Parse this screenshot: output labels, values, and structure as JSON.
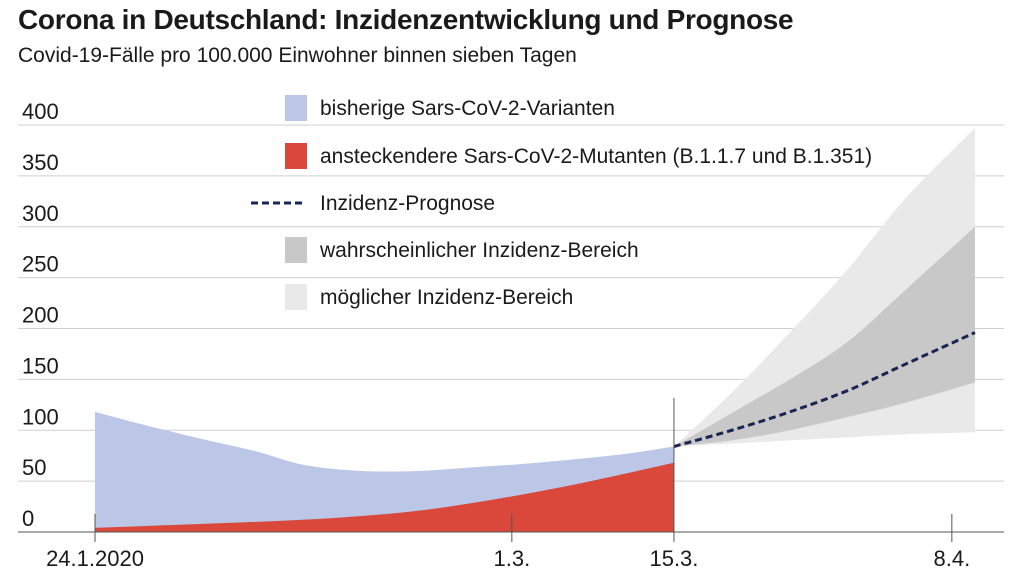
{
  "title": "Corona in Deutschland: Inzidenzentwicklung und Prognose",
  "subtitle": "Covid-19-Fälle pro 100.000 Einwohner binnen sieben Tagen",
  "colors": {
    "variants": "#bcc6e6",
    "mutants": "#d9483b",
    "forecast": "#1b2552",
    "likely": "#c8c8c8",
    "possible": "#e9e9e9",
    "grid": "#cfcfcf",
    "axis": "#555555"
  },
  "chart_data": {
    "type": "area",
    "title": "Corona in Deutschland: Inzidenzentwicklung und Prognose",
    "subtitle": "Covid-19-Fälle pro 100.000 Einwohner binnen sieben Tagen",
    "ylim": [
      0,
      400
    ],
    "yticks": [
      0,
      50,
      100,
      150,
      200,
      250,
      300,
      350,
      400
    ],
    "grid": true,
    "x_ticks": [
      {
        "label": "24.1.2020",
        "x": "2021-01-24"
      },
      {
        "label": "1.3.",
        "x": "2021-03-01"
      },
      {
        "label": "15.3.",
        "x": "2021-03-15"
      },
      {
        "label": "8.4.",
        "x": "2021-04-08"
      }
    ],
    "x_domain": [
      "2021-01-24",
      "2021-04-10"
    ],
    "legend": [
      {
        "label": "bisherige Sars-CoV-2-Varianten",
        "kind": "area",
        "color": "#bcc6e6"
      },
      {
        "label": "ansteckendere Sars-CoV-2-Mutanten (B.1.1.7 und B.1.351)",
        "kind": "area",
        "color": "#d9483b"
      },
      {
        "label": "Inzidenz-Prognose",
        "kind": "dashed-line",
        "color": "#1b2552"
      },
      {
        "label": "wahrscheinlicher Inzidenz-Bereich",
        "kind": "area",
        "color": "#c8c8c8"
      },
      {
        "label": "möglicher Inzidenz-Bereich",
        "kind": "area",
        "color": "#e9e9e9"
      }
    ],
    "series": [
      {
        "key": "total",
        "x": [
          "2021-01-24",
          "2021-01-28",
          "2021-02-02",
          "2021-02-07",
          "2021-02-11",
          "2021-02-16",
          "2021-02-21",
          "2021-02-25",
          "2021-03-02",
          "2021-03-06",
          "2021-03-11",
          "2021-03-15"
        ],
        "values": [
          118,
          106,
          92,
          79,
          66,
          60,
          60,
          63,
          67,
          71,
          77,
          84
        ]
      },
      {
        "key": "mutants",
        "x": [
          "2021-01-24",
          "2021-01-31",
          "2021-02-07",
          "2021-02-14",
          "2021-02-21",
          "2021-02-28",
          "2021-03-07",
          "2021-03-15"
        ],
        "values": [
          4,
          7,
          10,
          14,
          21,
          33,
          48,
          68
        ]
      },
      {
        "key": "forecast",
        "x": [
          "2021-03-15",
          "2021-03-20",
          "2021-03-25",
          "2021-03-30",
          "2021-04-04",
          "2021-04-10"
        ],
        "values": [
          84,
          100,
          118,
          139,
          165,
          196
        ]
      },
      {
        "key": "likely_range",
        "x": [
          "2021-03-15",
          "2021-03-20",
          "2021-03-25",
          "2021-03-30",
          "2021-04-04",
          "2021-04-10"
        ],
        "lower": [
          84,
          90,
          100,
          113,
          127,
          147
        ],
        "upper": [
          84,
          117,
          150,
          187,
          238,
          300
        ]
      },
      {
        "key": "possible_range",
        "x": [
          "2021-03-15",
          "2021-03-20",
          "2021-03-25",
          "2021-03-30",
          "2021-04-04",
          "2021-04-10"
        ],
        "lower": [
          84,
          87,
          90,
          93,
          96,
          98
        ],
        "upper": [
          84,
          137,
          196,
          258,
          328,
          397
        ]
      }
    ]
  }
}
